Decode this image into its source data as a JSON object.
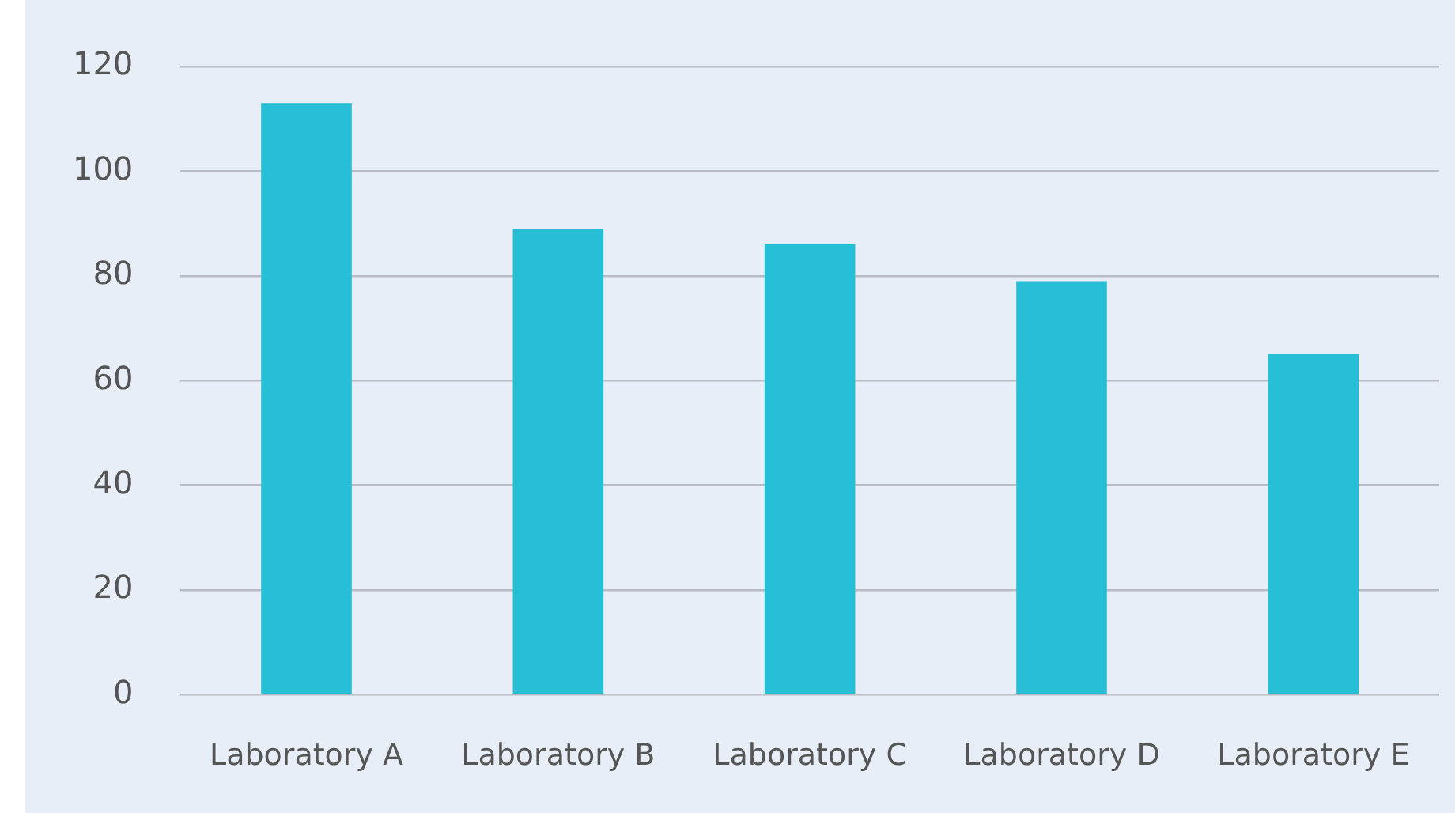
{
  "chart_data": {
    "type": "bar",
    "categories": [
      "Laboratory A",
      "Laboratory B",
      "Laboratory C",
      "Laboratory D",
      "Laboratory E"
    ],
    "values": [
      113,
      89,
      86,
      79,
      65
    ],
    "color": "#27bfd6",
    "ylim": [
      0,
      120
    ],
    "yticks": [
      0,
      20,
      40,
      60,
      80,
      100,
      120
    ],
    "grid": "y"
  }
}
